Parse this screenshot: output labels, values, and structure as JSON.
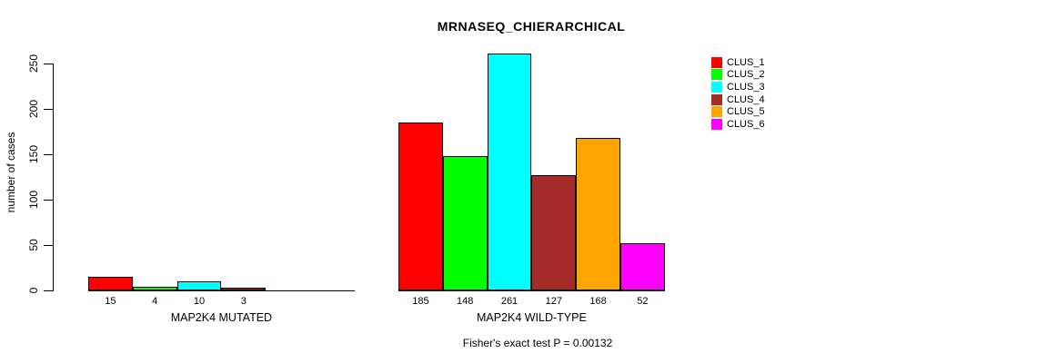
{
  "chart_data": {
    "type": "bar",
    "title": "MRNASEQ_CHIERARCHICAL",
    "ylabel": "number of cases",
    "xlabel": "",
    "ylim": [
      0,
      261
    ],
    "yticks": [
      0,
      50,
      100,
      150,
      200,
      250
    ],
    "grid": false,
    "legend_position": "top-right",
    "series_names": [
      "CLUS_1",
      "CLUS_2",
      "CLUS_3",
      "CLUS_4",
      "CLUS_5",
      "CLUS_6"
    ],
    "colors": [
      "#ff0000",
      "#00ff00",
      "#00ffff",
      "#a52a2a",
      "#ffa500",
      "#ff00ff"
    ],
    "groups": [
      {
        "label": "MAP2K4 MUTATED",
        "values": [
          15,
          4,
          10,
          3,
          0,
          0
        ],
        "bar_labels": [
          "15",
          "4",
          "10",
          "3",
          "",
          ""
        ]
      },
      {
        "label": "MAP2K4 WILD-TYPE",
        "values": [
          185,
          148,
          261,
          127,
          168,
          52
        ],
        "bar_labels": [
          "185",
          "148",
          "261",
          "127",
          "168",
          "52"
        ]
      }
    ],
    "annotation": "Fisher's exact test P = 0.00132"
  }
}
